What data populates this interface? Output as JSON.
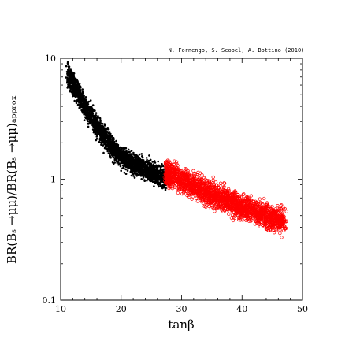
{
  "credit": "N. Fornengo, S. Scopel, A. Bottino  (2010)",
  "chart_data": {
    "type": "scatter",
    "xlabel": "tanβ",
    "ylabel": "BR(Bₛ →μμ)/BR(Bₛ →μμ)ₐₚₚᵣₒₓ",
    "xlim": [
      10,
      50
    ],
    "ylim": [
      0.1,
      10
    ],
    "yscale": "log",
    "xticks": [
      "10",
      "20",
      "30",
      "40",
      "50"
    ],
    "yticks": [
      "0.1",
      "1",
      "10"
    ],
    "grid": false,
    "series": [
      {
        "color": "#000000",
        "marker": "filled-dot",
        "points": [
          [
            11.2,
            7.8
          ],
          [
            11.6,
            6.6
          ],
          [
            12.0,
            6.2
          ],
          [
            12.4,
            5.6
          ],
          [
            12.8,
            5.3
          ],
          [
            13.2,
            4.8
          ],
          [
            13.6,
            4.4
          ],
          [
            14.0,
            4.0
          ],
          [
            14.5,
            3.6
          ],
          [
            15.0,
            3.3
          ],
          [
            15.5,
            3.0
          ],
          [
            16.0,
            2.75
          ],
          [
            16.5,
            2.5
          ],
          [
            17.0,
            2.3
          ],
          [
            17.5,
            2.15
          ],
          [
            18.0,
            2.0
          ],
          [
            18.5,
            1.85
          ],
          [
            19.0,
            1.75
          ],
          [
            19.5,
            1.65
          ],
          [
            20.0,
            1.55
          ],
          [
            20.5,
            1.48
          ],
          [
            21.0,
            1.42
          ],
          [
            21.5,
            1.38
          ],
          [
            22.0,
            1.34
          ],
          [
            22.5,
            1.31
          ],
          [
            23.0,
            1.28
          ],
          [
            23.5,
            1.24
          ],
          [
            24.0,
            1.21
          ],
          [
            24.5,
            1.18
          ],
          [
            25.0,
            1.15
          ],
          [
            25.5,
            1.12
          ],
          [
            26.0,
            1.08
          ],
          [
            26.5,
            1.05
          ],
          [
            27.0,
            1.02
          ],
          [
            27.5,
            1.0
          ]
        ],
        "spread_log10": 0.085
      },
      {
        "color": "#ff0000",
        "marker": "open-circle",
        "points": [
          [
            27.5,
            1.12
          ],
          [
            28.0,
            1.1
          ],
          [
            29.0,
            1.05
          ],
          [
            30.0,
            0.99
          ],
          [
            31.0,
            0.94
          ],
          [
            32.0,
            0.89
          ],
          [
            33.0,
            0.85
          ],
          [
            34.0,
            0.8
          ],
          [
            35.0,
            0.76
          ],
          [
            36.0,
            0.72
          ],
          [
            37.0,
            0.68
          ],
          [
            38.0,
            0.65
          ],
          [
            39.0,
            0.62
          ],
          [
            40.0,
            0.59
          ],
          [
            41.0,
            0.56
          ],
          [
            42.0,
            0.54
          ],
          [
            43.0,
            0.52
          ],
          [
            44.0,
            0.5
          ],
          [
            45.0,
            0.48
          ],
          [
            46.0,
            0.47
          ],
          [
            47.0,
            0.46
          ]
        ],
        "spread_log10": 0.1
      }
    ]
  }
}
